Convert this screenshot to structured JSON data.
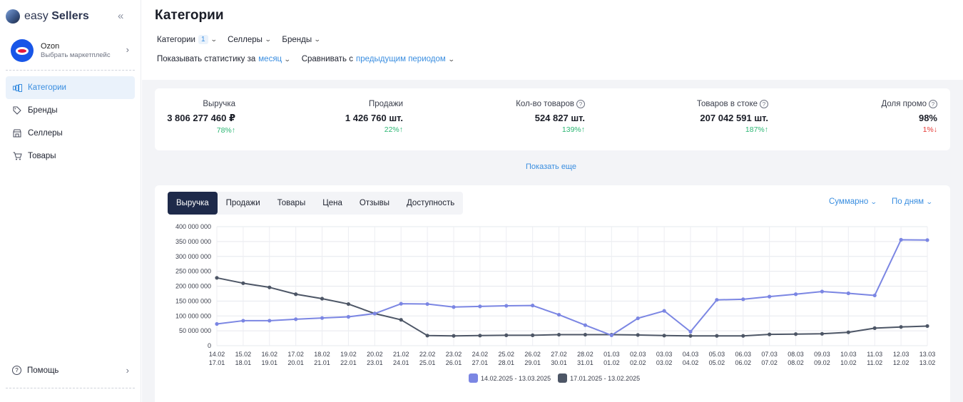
{
  "app": {
    "logo_light": "easy ",
    "logo_bold": "Sellers",
    "collapse": "«"
  },
  "marketplace": {
    "name": "Ozon",
    "subtitle": "Выбрать маркетплейс"
  },
  "sidebar": {
    "items": [
      {
        "label": "Категории",
        "icon": "categories-icon",
        "active": true
      },
      {
        "label": "Бренды",
        "icon": "tag-icon",
        "active": false
      },
      {
        "label": "Селлеры",
        "icon": "store-icon",
        "active": false
      },
      {
        "label": "Товары",
        "icon": "cart-icon",
        "active": false
      }
    ],
    "help": "Помощь"
  },
  "page": {
    "title": "Категории"
  },
  "filters": {
    "categories": "Категории",
    "categories_count": "1",
    "sellers": "Селлеры",
    "brands": "Бренды"
  },
  "period": {
    "show_stats": "Показывать статистику за",
    "show_stats_value": "месяц",
    "compare": "Сравнивать с",
    "compare_value": "предыдущим периодом"
  },
  "stats": [
    {
      "label": "Выручка",
      "value": "3 806 277 460 ₽",
      "delta": "78%",
      "dir": "up",
      "help": false
    },
    {
      "label": "Продажи",
      "value": "1 426 760 шт.",
      "delta": "22%",
      "dir": "up",
      "help": false
    },
    {
      "label": "Кол-во товаров",
      "value": "524 827 шт.",
      "delta": "139%",
      "dir": "up",
      "help": true
    },
    {
      "label": "Товаров в стоке",
      "value": "207 042 591 шт.",
      "delta": "187%",
      "dir": "up",
      "help": true
    },
    {
      "label": "Доля промо",
      "value": "98%",
      "delta": "1%",
      "dir": "down",
      "help": true
    }
  ],
  "show_more": "Показать еще",
  "tabs": [
    "Выручка",
    "Продажи",
    "Товары",
    "Цена",
    "Отзывы",
    "Доступность"
  ],
  "chart_controls": {
    "mode": "Суммарно",
    "granularity": "По дням"
  },
  "colors": {
    "current": "#7b86e3",
    "previous": "#4d5666",
    "accent": "#3a8ee0",
    "active_tab": "#1e2a4a"
  },
  "chart_data": {
    "type": "line",
    "y_ticks": [
      "0",
      "50 000 000",
      "100 000 000",
      "150 000 000",
      "200 000 000",
      "250 000 000",
      "300 000 000",
      "350 000 000",
      "400 000 000"
    ],
    "ylim": [
      0,
      400000000
    ],
    "x_top": [
      "14.02",
      "15.02",
      "16.02",
      "17.02",
      "18.02",
      "19.02",
      "20.02",
      "21.02",
      "22.02",
      "23.02",
      "24.02",
      "25.02",
      "26.02",
      "27.02",
      "28.02",
      "01.03",
      "02.03",
      "03.03",
      "04.03",
      "05.03",
      "06.03",
      "07.03",
      "08.03",
      "09.03",
      "10.03",
      "11.03",
      "12.03",
      "13.03"
    ],
    "x_bottom": [
      "17.01",
      "18.01",
      "19.01",
      "20.01",
      "21.01",
      "22.01",
      "23.01",
      "24.01",
      "25.01",
      "26.01",
      "27.01",
      "28.01",
      "29.01",
      "30.01",
      "31.01",
      "01.02",
      "02.02",
      "03.02",
      "04.02",
      "05.02",
      "06.02",
      "07.02",
      "08.02",
      "09.02",
      "10.02",
      "11.02",
      "12.02",
      "13.02"
    ],
    "series": [
      {
        "name": "14.02.2025 - 13.03.2025",
        "color": "#7b86e3",
        "values": [
          73000000,
          84000000,
          84000000,
          89000000,
          93000000,
          97000000,
          108000000,
          141000000,
          140000000,
          130000000,
          132000000,
          134000000,
          135000000,
          104000000,
          69000000,
          35000000,
          92000000,
          117000000,
          47000000,
          154000000,
          156000000,
          165000000,
          173000000,
          182000000,
          176000000,
          169000000,
          356000000,
          355000000
        ]
      },
      {
        "name": "17.01.2025 - 13.02.2025",
        "color": "#4d5666",
        "values": [
          228000000,
          210000000,
          196000000,
          173000000,
          158000000,
          140000000,
          108000000,
          87000000,
          34000000,
          33000000,
          34000000,
          35000000,
          35000000,
          37000000,
          37000000,
          37000000,
          36000000,
          34000000,
          33000000,
          33000000,
          33000000,
          38000000,
          39000000,
          40000000,
          45000000,
          59000000,
          63000000,
          66000000
        ]
      }
    ]
  }
}
